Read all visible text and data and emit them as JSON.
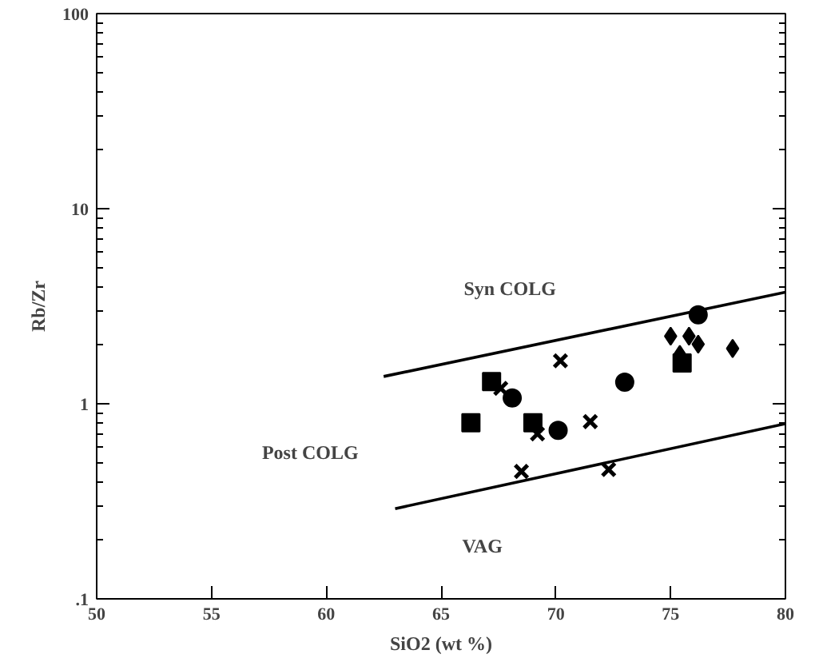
{
  "chart_data": {
    "type": "scatter",
    "xlabel": "SiO2 (wt %)",
    "ylabel": "Rb/Zr",
    "log": "y",
    "xlim": [
      50,
      80
    ],
    "xticks": [
      50,
      55,
      60,
      65,
      70,
      75,
      80
    ],
    "ylim": [
      0.1,
      100
    ],
    "yticks": [
      {
        "value": 0.1,
        "label": ".1"
      },
      1,
      10,
      100
    ],
    "grid": false,
    "series": [
      {
        "marker": "square",
        "color": "#000000",
        "x": [
          67.2,
          66.3,
          69.0,
          75.5
        ],
        "values": [
          1.3,
          0.8,
          0.8,
          1.62
        ]
      },
      {
        "marker": "circle",
        "color": "#000000",
        "x": [
          68.1,
          70.1,
          73.0,
          76.2
        ],
        "values": [
          1.07,
          0.73,
          1.29,
          2.86
        ]
      },
      {
        "marker": "diamond",
        "color": "#000000",
        "x": [
          75.0,
          75.8,
          76.2,
          77.7,
          75.4
        ],
        "values": [
          2.22,
          2.22,
          2.02,
          1.92,
          1.79
        ]
      },
      {
        "marker": "cross",
        "color": "#000000",
        "x": [
          67.6,
          69.2,
          70.2,
          71.5,
          68.5,
          72.3
        ],
        "values": [
          1.2,
          0.7,
          1.66,
          0.81,
          0.45,
          0.46
        ]
      },
      {
        "type": "line",
        "line_style": "solid",
        "color": "#000000",
        "x": [
          62.5,
          80
        ],
        "values": [
          1.38,
          3.73
        ]
      },
      {
        "type": "line",
        "line_style": "solid",
        "color": "#000000",
        "x": [
          63.0,
          80
        ],
        "values": [
          0.29,
          0.79
        ]
      }
    ],
    "annotations": [
      "Syn COLG",
      "Post COLG",
      "VAG"
    ]
  }
}
